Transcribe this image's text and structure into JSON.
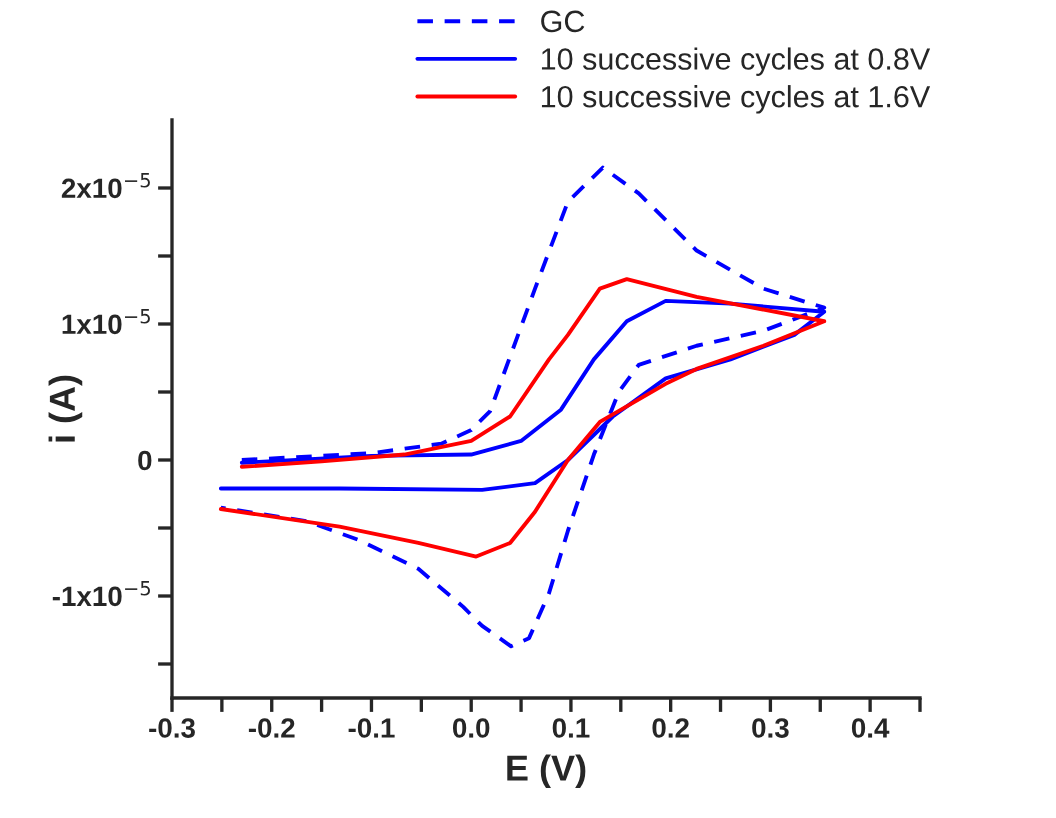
{
  "chart_data": {
    "type": "line",
    "xlabel": "E (V)",
    "ylabel": "i (A)",
    "xlim": [
      -0.3,
      0.45
    ],
    "ylim": [
      -1.75e-05,
      2.5e-05
    ],
    "xticks": [
      -0.3,
      {
        "value": -0.25,
        "label": null
      },
      -0.2,
      {
        "value": -0.15,
        "label": null
      },
      -0.1,
      {
        "value": -0.05,
        "label": null
      },
      {
        "value": 0.0,
        "label": "0.0"
      },
      {
        "value": 0.05,
        "label": null
      },
      0.1,
      {
        "value": 0.15,
        "label": null
      },
      0.2,
      {
        "value": 0.25,
        "label": null
      },
      0.3,
      {
        "value": 0.35,
        "label": null
      },
      0.4,
      {
        "value": 0.45,
        "label": null
      }
    ],
    "yticks": [
      {
        "value": -1.5e-05,
        "label": null
      },
      {
        "value": -1e-05,
        "label": "-1x10$^{−5}$"
      },
      {
        "value": -5e-06,
        "label": null
      },
      {
        "value": 0,
        "label": "0"
      },
      {
        "value": 5e-06,
        "label": null
      },
      {
        "value": 1e-05,
        "label": "1x10$^{−5}$"
      },
      {
        "value": 1.5e-05,
        "label": null
      },
      {
        "value": 2e-05,
        "label": "2x10$^{−5}$"
      }
    ],
    "grid": false,
    "legend": "top right",
    "series": [
      {
        "name": "GC",
        "color": "#0000ff",
        "line_style": "dashed",
        "x": [
          -0.23,
          -0.1,
          -0.03,
          0.0,
          0.019,
          0.064,
          0.097,
          0.132,
          0.168,
          0.226,
          0.293,
          0.354,
          0.293,
          0.226,
          0.168,
          0.148,
          0.123,
          0.097,
          0.078,
          0.058,
          0.04,
          0.011,
          -0.008,
          -0.053,
          -0.112,
          -0.165,
          -0.251
        ],
        "values": [
          0.0,
          5e-07,
          1.2e-06,
          2.2e-06,
          3.6e-06,
          1.26e-05,
          1.9e-05,
          2.15e-05,
          1.96e-05,
          1.54e-05,
          1.26e-05,
          1.12e-05,
          9.5e-06,
          8.4e-06,
          7e-06,
          5e-06,
          4e-07,
          -5.2e-06,
          -9.8e-06,
          -1.31e-05,
          -1.37e-05,
          -1.22e-05,
          -1.08e-05,
          -8e-06,
          -5.9e-06,
          -4.5e-06,
          -3.5e-06
        ]
      },
      {
        "name": "10 successive cycles at 0.8V",
        "color": "#0000ff",
        "line_style": "solid",
        "x": [
          -0.23,
          -0.1,
          0.0,
          0.05,
          0.09,
          0.123,
          0.156,
          0.195,
          0.26,
          0.354,
          0.324,
          0.26,
          0.195,
          0.142,
          0.097,
          0.064,
          0.011,
          -0.132,
          -0.251
        ],
        "values": [
          -2e-07,
          3e-07,
          4e-07,
          1.4e-06,
          3.7e-06,
          7.4e-06,
          1.02e-05,
          1.17e-05,
          1.15e-05,
          1.09e-05,
          9.2e-06,
          7.4e-06,
          6e-06,
          3.2e-06,
          0.0,
          -1.7e-06,
          -2.2e-06,
          -2.1e-06,
          -2.1e-06
        ]
      },
      {
        "name": "10 successive cycles at 1.6V",
        "color": "#ff0000",
        "line_style": "solid",
        "x": [
          -0.23,
          -0.15,
          -0.067,
          0.0,
          0.039,
          0.078,
          0.097,
          0.129,
          0.156,
          0.226,
          0.354,
          0.293,
          0.226,
          0.195,
          0.129,
          0.097,
          0.064,
          0.039,
          0.005,
          -0.053,
          -0.132,
          -0.251
        ],
        "values": [
          -5e-07,
          -1e-07,
          4e-07,
          1.4e-06,
          3.2e-06,
          7.4e-06,
          9.2e-06,
          1.26e-05,
          1.33e-05,
          1.2e-05,
          1.02e-05,
          8.4e-06,
          6.7e-06,
          5.6e-06,
          2.8e-06,
          0.0,
          -3.8e-06,
          -6.1e-06,
          -7.1e-06,
          -6.1e-06,
          -4.9e-06,
          -3.6e-06
        ]
      }
    ]
  }
}
